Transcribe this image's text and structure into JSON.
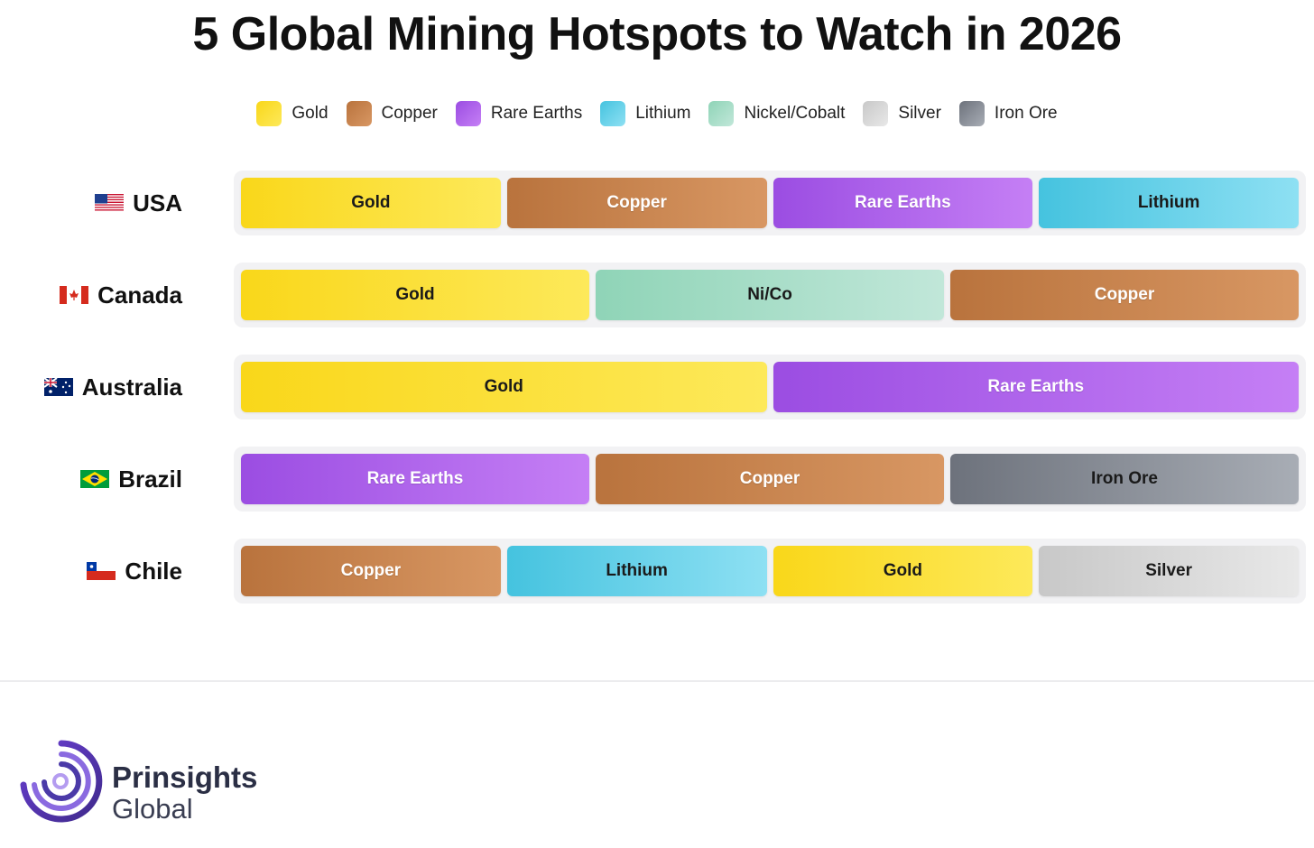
{
  "chart_data": {
    "type": "stacked-bar",
    "title": "5 Global Mining Hotspots to Watch in 2026",
    "legend": [
      {
        "name": "Gold",
        "key": "gold"
      },
      {
        "name": "Copper",
        "key": "copper"
      },
      {
        "name": "Rare Earths",
        "key": "rare_earths"
      },
      {
        "name": "Lithium",
        "key": "lithium"
      },
      {
        "name": "Nickel/Cobalt",
        "key": "nickel_cobalt"
      },
      {
        "name": "Silver",
        "key": "silver"
      },
      {
        "name": "Iron Ore",
        "key": "iron_ore"
      }
    ],
    "categories": [
      "USA",
      "Canada",
      "Australia",
      "Brazil",
      "Chile"
    ],
    "rows": [
      {
        "country": "USA",
        "flag": "us-flag",
        "segments": [
          {
            "label": "Gold",
            "key": "gold",
            "share": 1
          },
          {
            "label": "Copper",
            "key": "copper",
            "share": 1
          },
          {
            "label": "Rare Earths",
            "key": "rare_earths",
            "share": 1
          },
          {
            "label": "Lithium",
            "key": "lithium",
            "share": 1
          }
        ]
      },
      {
        "country": "Canada",
        "flag": "ca-flag",
        "segments": [
          {
            "label": "Gold",
            "key": "gold",
            "share": 1
          },
          {
            "label": "Ni/Co",
            "key": "nickel_cobalt",
            "share": 1
          },
          {
            "label": "Copper",
            "key": "copper",
            "share": 1
          }
        ]
      },
      {
        "country": "Australia",
        "flag": "au-flag",
        "segments": [
          {
            "label": "Gold",
            "key": "gold",
            "share": 1
          },
          {
            "label": "Rare Earths",
            "key": "rare_earths",
            "share": 1
          }
        ]
      },
      {
        "country": "Brazil",
        "flag": "br-flag",
        "segments": [
          {
            "label": "Rare Earths",
            "key": "rare_earths",
            "share": 1
          },
          {
            "label": "Copper",
            "key": "copper",
            "share": 1
          },
          {
            "label": "Iron Ore",
            "key": "iron_ore",
            "share": 1
          }
        ]
      },
      {
        "country": "Chile",
        "flag": "cl-flag",
        "segments": [
          {
            "label": "Copper",
            "key": "copper",
            "share": 1
          },
          {
            "label": "Lithium",
            "key": "lithium",
            "share": 1
          },
          {
            "label": "Gold",
            "key": "gold",
            "share": 1
          },
          {
            "label": "Silver",
            "key": "silver",
            "share": 1
          }
        ]
      }
    ],
    "colors": {
      "gold": {
        "from": "#f9d71a",
        "to": "#fde95a",
        "text": "#1a1a1a"
      },
      "copper": {
        "from": "#b9733d",
        "to": "#d89763",
        "text": "#ffffff"
      },
      "rare_earths": {
        "from": "#9b4de2",
        "to": "#c57ff5",
        "text": "#ffffff"
      },
      "lithium": {
        "from": "#45c3df",
        "to": "#8ee0f3",
        "text": "#1a1a1a"
      },
      "nickel_cobalt": {
        "from": "#8fd4b7",
        "to": "#c1e7d9",
        "text": "#1a1a1a"
      },
      "silver": {
        "from": "#c8c8c8",
        "to": "#e8e8e8",
        "text": "#1a1a1a"
      },
      "iron_ore": {
        "from": "#6d727c",
        "to": "#a8adb5",
        "text": "#1a1a1a"
      }
    }
  },
  "branding": {
    "name_line1": "Prinsights",
    "name_line2": "Global",
    "logo_icon": "concentric-swirl-logo"
  }
}
